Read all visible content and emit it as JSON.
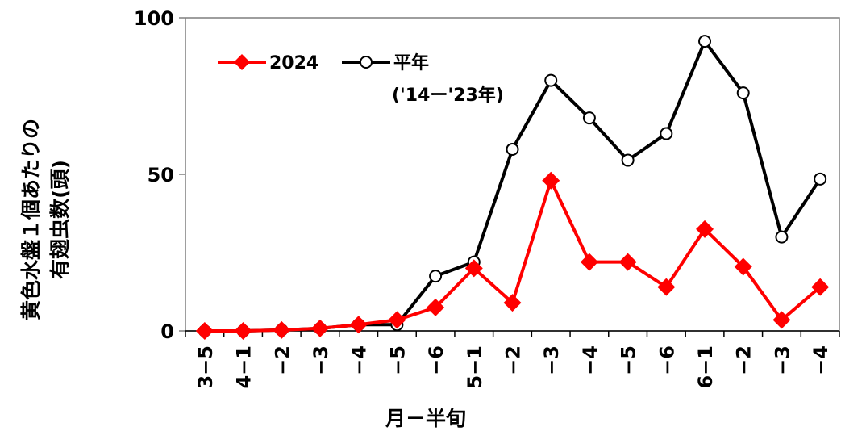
{
  "chart_data": {
    "type": "line",
    "xlabel": "月－半旬",
    "ylabel_lines": [
      "黄色水盤１個あたりの",
      "有翅虫数(頭)"
    ],
    "ylim": [
      0,
      100
    ],
    "yticks": [
      "0",
      "50",
      "100"
    ],
    "categories": [
      "3−5",
      "4−1",
      "−2",
      "−3",
      "−4",
      "−5",
      "−6",
      "5−1",
      "−2",
      "−3",
      "−4",
      "−5",
      "−6",
      "6−1",
      "−2",
      "−3",
      "−4"
    ],
    "legend_position": "top-left",
    "series": [
      {
        "name": "2024",
        "color": "#ff0000",
        "marker": "diamond",
        "values": [
          0,
          0,
          0.3,
          0.8,
          2,
          3.5,
          7.5,
          20,
          9,
          48,
          22,
          22,
          14,
          32.5,
          20.5,
          3.5,
          14
        ]
      },
      {
        "name": "平年",
        "name_note": "('14ー'23年)",
        "color": "#000000",
        "marker": "open-circle",
        "values": [
          0,
          0,
          0.3,
          0.8,
          2,
          2,
          17.5,
          22,
          58,
          80,
          68,
          54.5,
          63,
          92.5,
          76,
          30,
          48.5
        ]
      }
    ]
  }
}
